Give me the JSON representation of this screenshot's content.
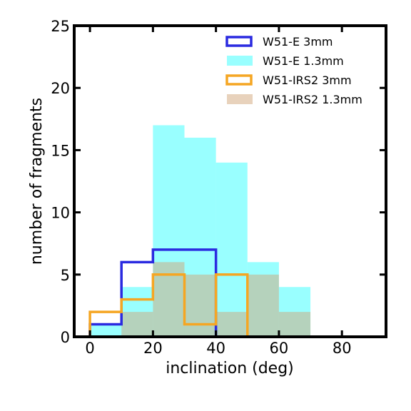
{
  "chart_data": {
    "type": "bar",
    "xlabel": "inclination (deg)",
    "ylabel": "number of fragments",
    "xlim": [
      -5,
      94
    ],
    "ylim": [
      0,
      25
    ],
    "xticks": [
      0,
      20,
      40,
      60,
      80
    ],
    "yticks": [
      0,
      5,
      10,
      15,
      20,
      25
    ],
    "bin_edges": [
      0,
      10,
      20,
      30,
      40,
      50,
      60,
      70,
      80,
      90
    ],
    "legend_position": "top-right",
    "series": [
      {
        "name": "W51-E 1.3mm",
        "style": "filled",
        "color": "#00ffff",
        "alpha": 0.4,
        "values": [
          1,
          4,
          17,
          16,
          14,
          6,
          4,
          0,
          0
        ]
      },
      {
        "name": "W51-IRS2 1.3mm",
        "style": "filled",
        "color": "#d2a679",
        "alpha": 0.5,
        "values": [
          0,
          2,
          6,
          5,
          2,
          5,
          2,
          0,
          0
        ]
      },
      {
        "name": "W51-E 3mm",
        "style": "step",
        "color": "#2a2ae0",
        "values": [
          1,
          6,
          7,
          7,
          0,
          0,
          0,
          0,
          0
        ]
      },
      {
        "name": "W51-IRS2 3mm",
        "style": "step",
        "color": "#f5a623",
        "values": [
          2,
          3,
          5,
          1,
          5,
          0,
          0,
          0,
          0
        ]
      }
    ],
    "legend_order": [
      "W51-E 3mm",
      "W51-E 1.3mm",
      "W51-IRS2 3mm",
      "W51-IRS2 1.3mm"
    ]
  }
}
